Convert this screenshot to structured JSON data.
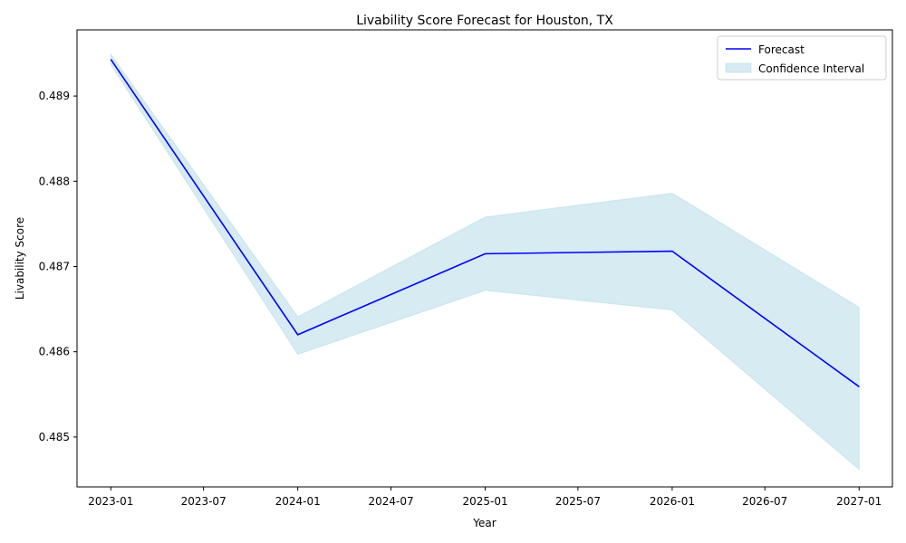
{
  "chart_data": {
    "type": "line",
    "title": "Livability Score Forecast for Houston, TX",
    "xlabel": "Year",
    "ylabel": "Livability Score",
    "x": [
      "2023-01-01",
      "2024-01-01",
      "2025-01-01",
      "2026-01-01",
      "2027-01-01"
    ],
    "series": [
      {
        "name": "Forecast",
        "values": [
          0.48943,
          0.4862,
          0.48715,
          0.48718,
          0.48559
        ],
        "color": "#0000ff"
      }
    ],
    "confidence_interval": {
      "name": "Confidence Interval",
      "lower": [
        0.48937,
        0.48597,
        0.48672,
        0.48649,
        0.48462
      ],
      "upper": [
        0.48949,
        0.48641,
        0.48758,
        0.48786,
        0.48652
      ],
      "color": "#add8e6"
    },
    "x_ticks": [
      "2023-01",
      "2023-07",
      "2024-01",
      "2024-07",
      "2025-01",
      "2025-07",
      "2026-01",
      "2026-07",
      "2027-01"
    ],
    "x_tick_dates": [
      "2023-01-01",
      "2023-07-01",
      "2024-01-01",
      "2024-07-01",
      "2025-01-01",
      "2025-07-01",
      "2026-01-01",
      "2026-07-01",
      "2027-01-01"
    ],
    "y_ticks": [
      "0.485",
      "0.486",
      "0.487",
      "0.488",
      "0.489"
    ],
    "y_tick_values": [
      0.485,
      0.486,
      0.487,
      0.488,
      0.489
    ],
    "xlim": [
      "2022-10-27",
      "2027-03-07"
    ],
    "ylim": [
      0.484415,
      0.489776
    ],
    "grid": false,
    "legend_position": "top-right"
  }
}
